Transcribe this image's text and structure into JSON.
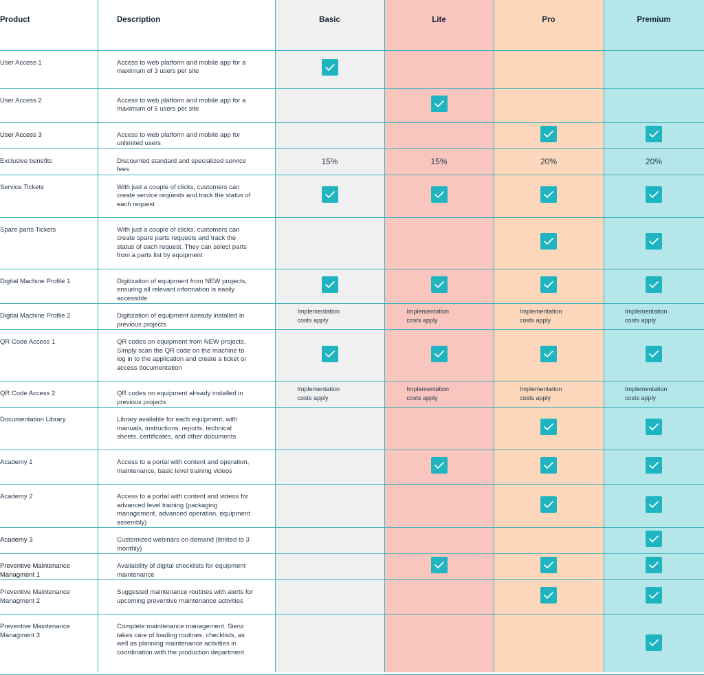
{
  "header": {
    "product": "Product",
    "description": "Description",
    "basic": "Basic",
    "lite": "Lite",
    "pro": "Pro",
    "premium": "Premium"
  },
  "colors": {
    "accent": "#1fb4c0",
    "basic_bg": "#f0f0f0",
    "lite_bg": "#f8c5bf",
    "pro_bg": "#fcd7bb",
    "premium_bg": "#b4e6ea",
    "grid": "#3fb3bc"
  },
  "rows": [
    {
      "product": "User Access 1",
      "description": "Access to web platform and mobile app for a maximum of 3 users per site",
      "basic": "check",
      "lite": "",
      "pro": "",
      "premium": ""
    },
    {
      "product": "User Access 2",
      "description": "Access to web platform and mobile app for a maximum of 6 users per site",
      "basic": "",
      "lite": "check",
      "pro": "",
      "premium": ""
    },
    {
      "product": "User Access 3",
      "description": "Access to web platform and mobile app for unlimited users",
      "basic": "",
      "lite": "",
      "pro": "check",
      "premium": "check"
    },
    {
      "product": "Exclusive benefits",
      "description": "Discounted standard and specialized service fees",
      "basic": "15%",
      "lite": "15%",
      "pro": "20%",
      "premium": "20%"
    },
    {
      "product": "Service Tickets",
      "description": "With just a couple of clicks, customers can create service requests and track the status of each request",
      "basic": "check",
      "lite": "check",
      "pro": "check",
      "premium": "check"
    },
    {
      "product": "Spare parts Tickets",
      "description": "With just a couple of clicks, customers can create spare parts requests and track the status of each request. They can select parts from a parts list by equipment",
      "basic": "",
      "lite": "",
      "pro": "check",
      "premium": "check"
    },
    {
      "product": "Digital Machine Profile 1",
      "description": "Digitization of equipment from NEW projects, ensuring all relevant information is easily accessible",
      "basic": "check",
      "lite": "check",
      "pro": "check",
      "premium": "check"
    },
    {
      "product": "Digital Machine Profile 2",
      "description": "Digitization of equipment already installed in previous projects",
      "basic": "Implementation costs apply",
      "lite": "Implementation costs apply",
      "pro": "Implementation costs apply",
      "premium": "Implementation costs apply"
    },
    {
      "product": "QR Code Access 1",
      "description": "QR codes on equipment from NEW projects. Simply scan the QR code on the machine to log in to the application and create a ticket or access documentation",
      "basic": "check",
      "lite": "check",
      "pro": "check",
      "premium": "check"
    },
    {
      "product": "QR Code Access 2",
      "description": "QR codes on equipment already installed in previous projects",
      "basic": "Implementation costs apply",
      "lite": "Implementation costs apply",
      "pro": "Implementation costs apply",
      "premium": "Implementation costs apply"
    },
    {
      "product": "Documentation Library",
      "description": "Library available for each equipment, with manuals, instructions, reports, technical sheets, certificates, and other documents",
      "basic": "",
      "lite": "",
      "pro": "check",
      "premium": "check"
    },
    {
      "product": "Academy 1",
      "description": "Access to a portal with content and operation, maintenance, basic level training videos",
      "basic": "",
      "lite": "check",
      "pro": "check",
      "premium": "check"
    },
    {
      "product": "Academy 2",
      "description": "Access to a portal with content and videos for advanced level training (packaging management, advanced operation, equipment assembly)",
      "basic": "",
      "lite": "",
      "pro": "check",
      "premium": "check"
    },
    {
      "product": "Academy 3",
      "description": "Customized webinars on demand (limited to 3 monthly)",
      "basic": "",
      "lite": "",
      "pro": "",
      "premium": "check"
    },
    {
      "product": "Preventive Maintenance Managment 1",
      "description": "Availability of digital checklists for equipment maintenance",
      "basic": "",
      "lite": "check",
      "pro": "check",
      "premium": "check"
    },
    {
      "product": "Preventive Maintenance Managment 2",
      "description": "Suggested maintenance routines with alerts for upcoming preventive maintenance activities",
      "basic": "",
      "lite": "",
      "pro": "check",
      "premium": "check"
    },
    {
      "product": "Preventive Maintenance Managment 3",
      "description": "Complete maintenance management. Sienz takes care of loading routines, checklists, as well as planning maintenance activities in coordination with the production department",
      "basic": "",
      "lite": "",
      "pro": "",
      "premium": "check"
    }
  ]
}
